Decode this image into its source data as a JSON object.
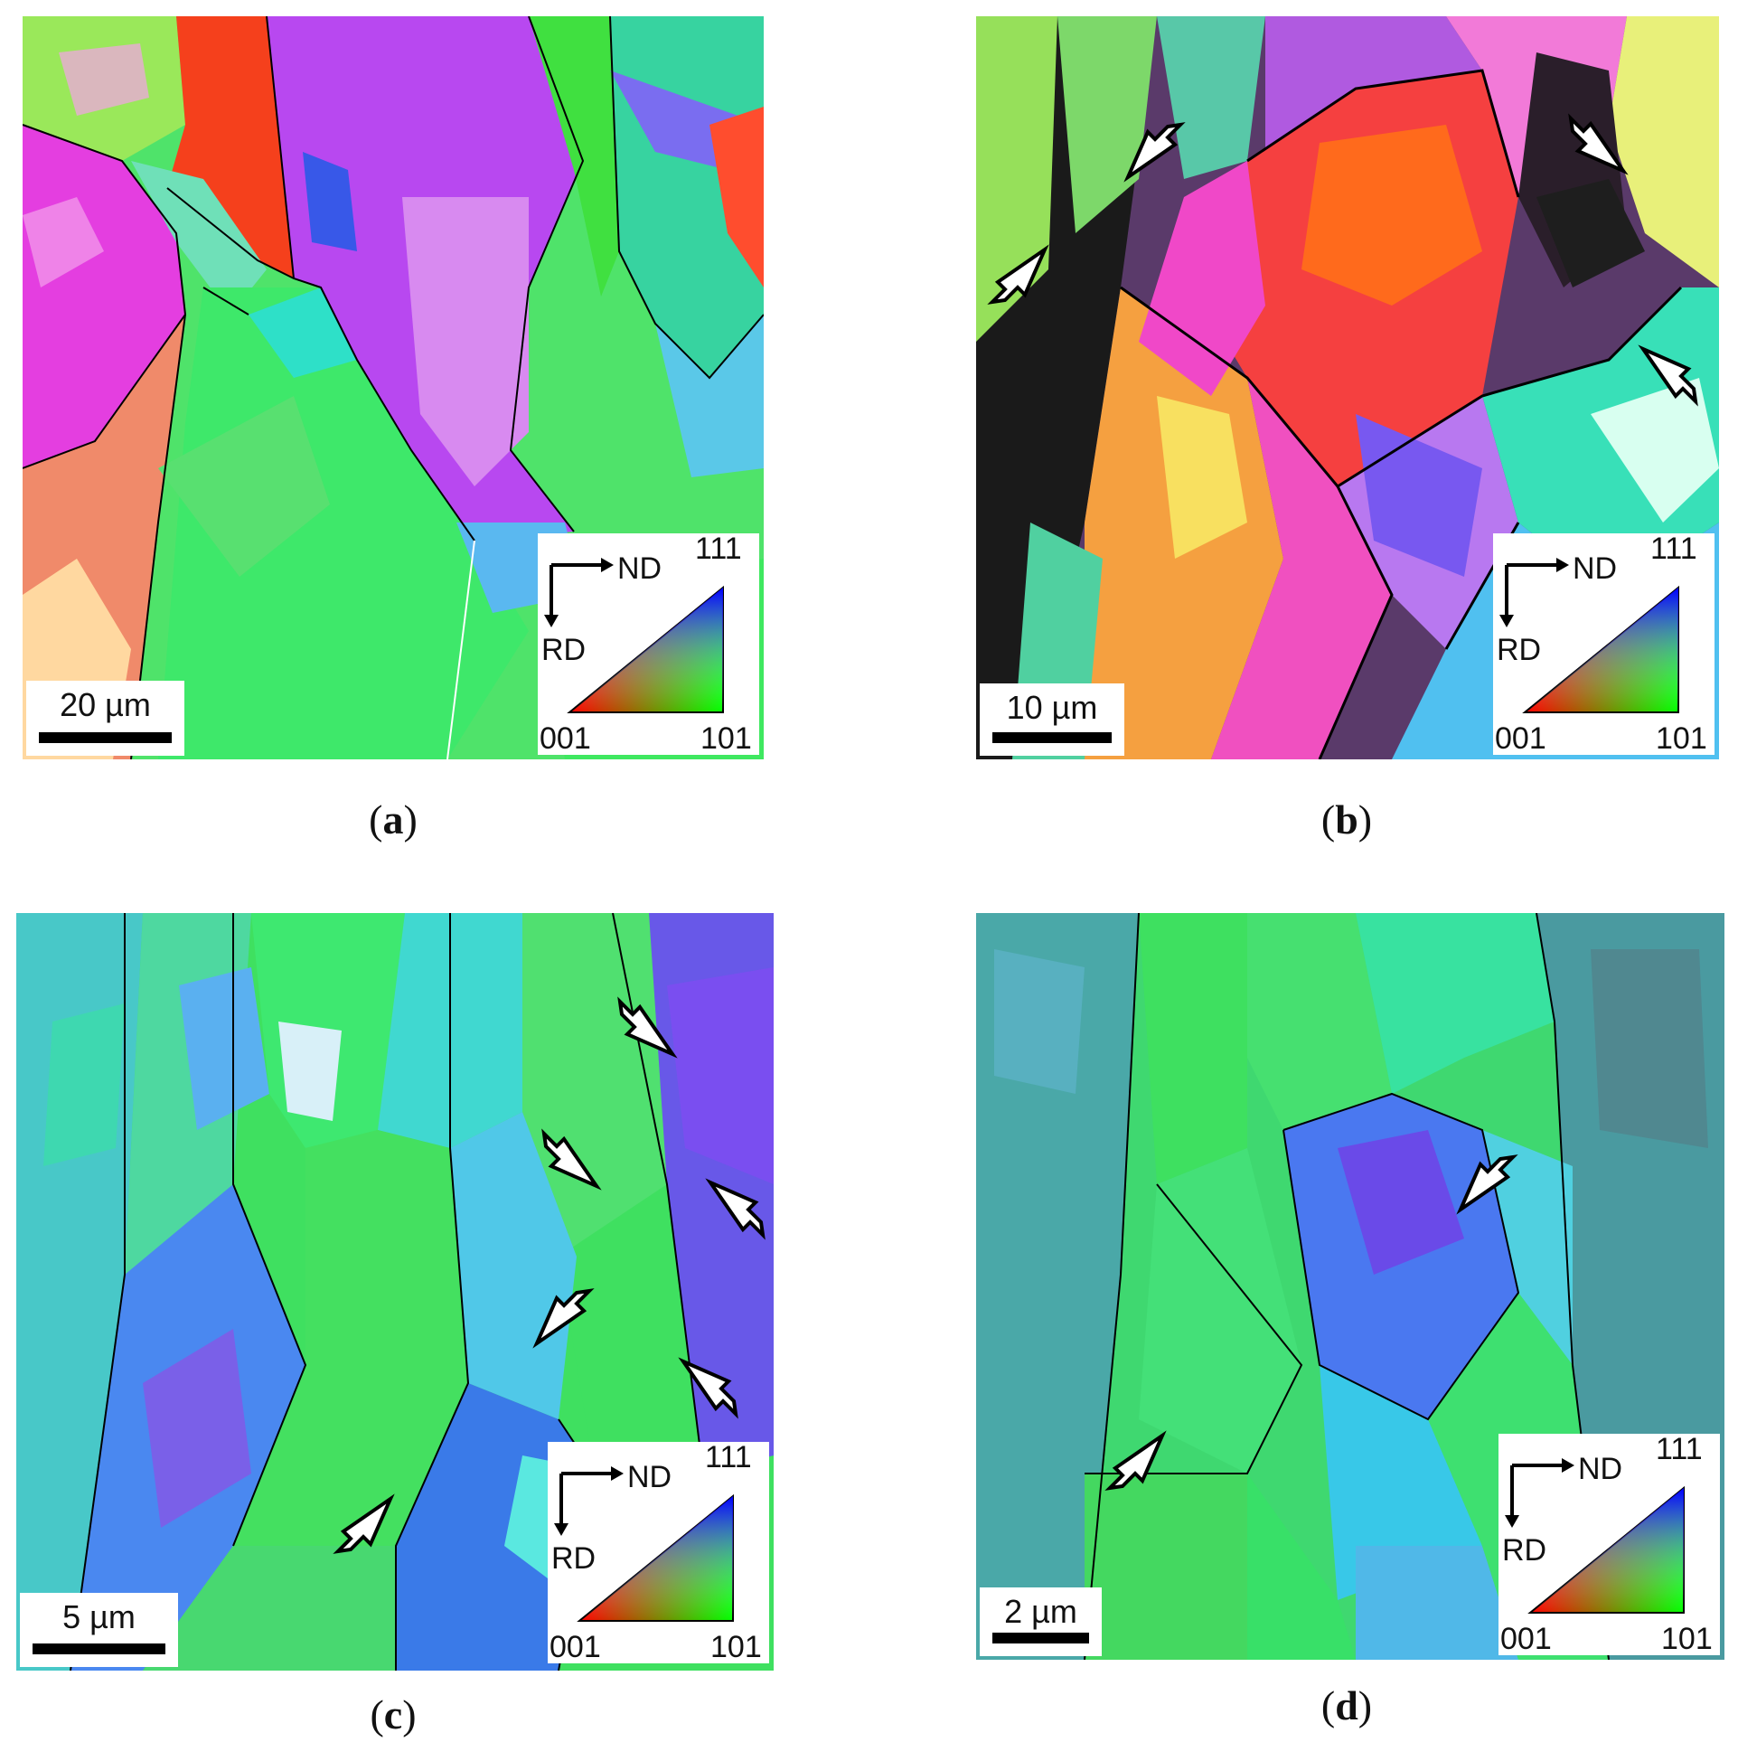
{
  "panels": [
    {
      "id": "a",
      "scale_label": "20 µm",
      "caption_letter": "a"
    },
    {
      "id": "b",
      "scale_label": "10 µm",
      "caption_letter": "b"
    },
    {
      "id": "c",
      "scale_label": "5 µm",
      "caption_letter": "c"
    },
    {
      "id": "d",
      "scale_label": "2 µm",
      "caption_letter": "d"
    }
  ],
  "legend": {
    "axis_nd": "ND",
    "axis_rd": "RD",
    "pole_111": "111",
    "pole_001": "001",
    "pole_101": "101"
  },
  "colors": {
    "pole_001": "#ff0000",
    "pole_101": "#00ff00",
    "pole_111": "#0000ff",
    "boundary": "#000000"
  }
}
